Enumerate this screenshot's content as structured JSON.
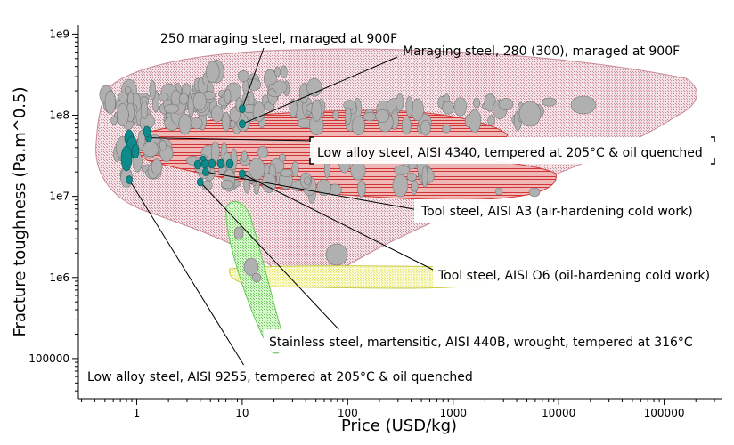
{
  "chart_data": {
    "type": "scatter",
    "xlabel": "Price (USD/kg)",
    "ylabel": "Fracture toughness (Pa.m^0.5)",
    "x_scale": "log",
    "y_scale": "log",
    "xlim": [
      0.28,
      350000
    ],
    "ylim": [
      32000,
      1300000000
    ],
    "x_ticks": [
      {
        "value": 1,
        "label": "1"
      },
      {
        "value": 10,
        "label": "10"
      },
      {
        "value": 100,
        "label": "100"
      },
      {
        "value": 1000,
        "label": "1000"
      },
      {
        "value": 10000,
        "label": "10000"
      },
      {
        "value": 100000,
        "label": "100000"
      }
    ],
    "y_ticks": [
      {
        "value": 100000,
        "label": "100000"
      },
      {
        "value": 1000000,
        "label": "1e6"
      },
      {
        "value": 10000000,
        "label": "1e7"
      },
      {
        "value": 100000000,
        "label": "1e8"
      },
      {
        "value": 1000000000,
        "label": "1e9"
      }
    ],
    "colors": {
      "metals_envelope": "#c98a96",
      "steel_band": "#d22b2b",
      "bubbles": "#b0b0b0",
      "bubble_edge": "#777777",
      "highlight": "#0e8a8a",
      "green_envelope": "#7ed36a",
      "yellow_envelope": "#eef07a"
    },
    "highlighted_points": [
      {
        "name": "250 maraging steel, maraged at 900F",
        "x": 10,
        "y": 120000000
      },
      {
        "name": "Maraging steel, 280 (300), maraged at 900F",
        "x": 10,
        "y": 78000000
      },
      {
        "name": "Low alloy steel, AISI 4340, tempered at 205°C & oil quenched",
        "x": 1.3,
        "y": 53000000
      },
      {
        "name": "Tool steel, AISI A3 (air-hardening cold work)",
        "x": 4.5,
        "y": 20000000
      },
      {
        "name": "Tool steel, AISI O6 (oil-hardening cold work)",
        "x": 10,
        "y": 19000000
      },
      {
        "name": "Stainless steel, martensitic, AISI 440B, wrought, tempered at 316°C",
        "x": 4,
        "y": 15000000
      },
      {
        "name": "Low alloy steel, AISI 9255, tempered at 205°C & oil quenched",
        "x": 0.85,
        "y": 16000000
      }
    ],
    "annotations": [
      {
        "text": "250 maraging steel, maraged at 900F",
        "target_x": 10,
        "target_y": 120000000
      },
      {
        "text": "Maraging steel, 280 (300), maraged at 900F",
        "target_x": 10,
        "target_y": 78000000
      },
      {
        "text": "Low alloy steel, AISI 4340, tempered at 205°C & oil quenched",
        "target_x": 1.3,
        "target_y": 53000000
      },
      {
        "text": "Tool steel, AISI A3 (air-hardening cold work)",
        "target_x": 4.5,
        "target_y": 20000000
      },
      {
        "text": "Tool steel, AISI O6 (oil-hardening cold work)",
        "target_x": 10,
        "target_y": 19000000
      },
      {
        "text": "Stainless steel, martensitic, AISI 440B, wrought, tempered at 316°C",
        "target_x": 4,
        "target_y": 15000000
      },
      {
        "text": "Low alloy steel, AISI 9255, tempered at 205°C & oil quenched",
        "target_x": 0.85,
        "target_y": 16000000
      }
    ]
  }
}
